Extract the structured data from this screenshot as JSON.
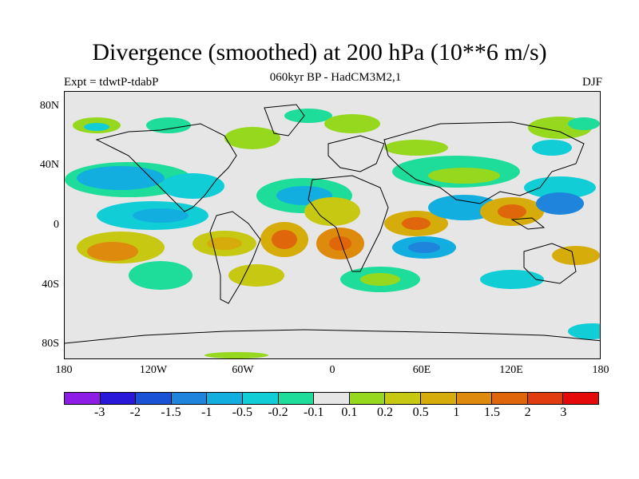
{
  "title": "Divergence (smoothed) at 200 hPa (10**6 m/s)",
  "subtitle": "060kyr BP - HadCM3M2,1",
  "experiment": "Expt = tdwtP-tdabP",
  "season": "DJF",
  "map": {
    "projection": "cylindrical equidistant",
    "lon_range": [
      -180,
      180
    ],
    "lat_range": [
      -90,
      90
    ],
    "y_axis_labels": [
      {
        "text": "80N",
        "lat": 80
      },
      {
        "text": "40N",
        "lat": 40
      },
      {
        "text": "0",
        "lat": 0
      },
      {
        "text": "40S",
        "lat": -40
      },
      {
        "text": "80S",
        "lat": -80
      }
    ],
    "x_axis_labels": [
      {
        "text": "180",
        "lon": -180
      },
      {
        "text": "120W",
        "lon": -120
      },
      {
        "text": "60W",
        "lon": -60
      },
      {
        "text": "0",
        "lon": 0
      },
      {
        "text": "60E",
        "lon": 60
      },
      {
        "text": "120E",
        "lon": 120
      },
      {
        "text": "180",
        "lon": 180
      }
    ],
    "background_color": "#e6e6e6"
  },
  "colorbar": {
    "colors": [
      "#8c1ce6",
      "#2a18d8",
      "#1a52d6",
      "#1e84dc",
      "#12aee0",
      "#10cdd6",
      "#1edc9a",
      "#e6e6e6",
      "#96d81e",
      "#c6c812",
      "#d6ac0a",
      "#de8a0c",
      "#e0660c",
      "#e03c10",
      "#e40a0a"
    ],
    "labels": [
      "-3",
      "-2",
      "-1.5",
      "-1",
      "-0.5",
      "-0.2",
      "-0.1",
      "0.1",
      "0.2",
      "0.5",
      "1",
      "1.5",
      "2",
      "3"
    ]
  }
}
